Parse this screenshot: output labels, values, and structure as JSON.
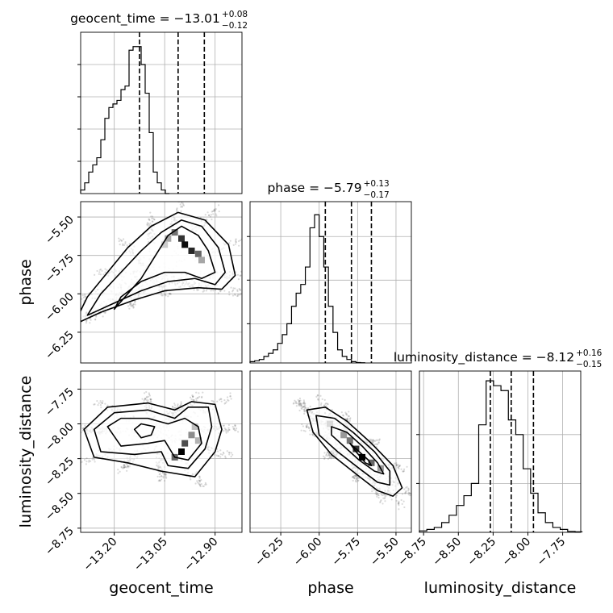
{
  "chart_data": {
    "type": "corner",
    "parameters": [
      {
        "key": "geocent_time",
        "label": "geocent_time",
        "title_name": "geocent_time",
        "title_value": "−13.01",
        "title_plus": "+0.08",
        "title_minus": "−0.12",
        "range": [
          -13.3,
          -12.82
        ],
        "ticks": [
          -13.2,
          -13.05,
          -12.9
        ],
        "tick_labels": [
          "−13.20",
          "−13.05",
          "−12.90"
        ],
        "quantiles": [
          -13.125,
          -13.01,
          -12.932
        ],
        "hist": {
          "edges_start": -13.3,
          "bin_width": 0.012,
          "counts": [
            1,
            3,
            6,
            8,
            10,
            15,
            21,
            24,
            25,
            26,
            29,
            30,
            40,
            41,
            41,
            36,
            28,
            17,
            6,
            3,
            1,
            0
          ]
        },
        "hist_ylim": [
          0,
          45
        ],
        "hist_grid": [
          9,
          18,
          27,
          36
        ]
      },
      {
        "key": "phase",
        "label": "phase",
        "title_name": "phase",
        "title_value": "−5.79",
        "title_plus": "+0.13",
        "title_minus": "−0.17",
        "range": [
          -6.45,
          -5.4
        ],
        "ticks": [
          -6.25,
          -6.0,
          -5.75,
          -5.5
        ],
        "tick_labels": [
          "−6.25",
          "−6.00",
          "−5.75",
          "−5.50"
        ],
        "quantiles": [
          -5.96,
          -5.79,
          -5.66
        ],
        "hist": {
          "edges_start": -6.45,
          "bin_width": 0.03,
          "counts": [
            0.3,
            0.5,
            0.8,
            1.5,
            2.2,
            3.0,
            4.5,
            6.5,
            9,
            13,
            16,
            18,
            22,
            31,
            34,
            29,
            22,
            13,
            7,
            3,
            1.5,
            0.8,
            0.3,
            0.1,
            0.05
          ]
        },
        "hist_ylim": [
          0,
          37
        ],
        "hist_grid": [
          9,
          19,
          29
        ]
      },
      {
        "key": "luminosity_distance",
        "label": "luminosity_distance",
        "title_name": "luminosity_distance",
        "title_value": "−8.12",
        "title_plus": "+0.16",
        "title_minus": "−0.15",
        "range": [
          -8.78,
          -7.62
        ],
        "ticks": [
          -8.75,
          -8.5,
          -8.25,
          -8.0,
          -7.75
        ],
        "tick_labels": [
          "−8.75",
          "−8.50",
          "−8.25",
          "−8.00",
          "−7.75"
        ],
        "quantiles": [
          -8.27,
          -8.12,
          -7.96
        ],
        "hist": {
          "edges_start": -8.78,
          "bin_width": 0.0533,
          "counts": [
            0.3,
            0.6,
            1.0,
            2.0,
            3.5,
            5.5,
            7.5,
            10,
            22,
            31,
            30,
            29,
            23,
            20,
            13,
            8,
            4,
            2.0,
            1.0,
            0.6,
            0.2,
            0.1
          ]
        },
        "hist_ylim": [
          0,
          33
        ],
        "hist_grid": [
          10,
          20
        ]
      }
    ],
    "joint": {
      "phase_vs_geocent_time": {
        "points": [
          [
            -13.26,
            -6.1
          ],
          [
            -13.2,
            -6.0
          ],
          [
            -13.14,
            -5.88
          ],
          [
            -13.08,
            -5.72
          ],
          [
            -13.03,
            -5.6
          ],
          [
            -13.0,
            -5.58
          ],
          [
            -12.96,
            -5.66
          ],
          [
            -12.94,
            -5.74
          ],
          [
            -12.92,
            -5.82
          ],
          [
            -12.9,
            -5.86
          ],
          [
            -12.96,
            -5.9
          ],
          [
            -13.02,
            -5.86
          ],
          [
            -13.1,
            -5.9
          ],
          [
            -13.18,
            -6.0
          ],
          [
            -13.24,
            -6.12
          ]
        ],
        "levels": [
          [
            [
              -13.2,
              -6.1
            ],
            [
              -13.16,
              -6.0
            ],
            [
              -13.12,
              -5.9
            ],
            [
              -13.08,
              -5.76
            ],
            [
              -13.04,
              -5.62
            ],
            [
              -13.0,
              -5.56
            ],
            [
              -12.95,
              -5.62
            ],
            [
              -12.92,
              -5.72
            ],
            [
              -12.9,
              -5.86
            ],
            [
              -12.94,
              -5.9
            ],
            [
              -12.99,
              -5.86
            ],
            [
              -13.05,
              -5.86
            ],
            [
              -13.12,
              -5.92
            ],
            [
              -13.18,
              -6.02
            ],
            [
              -13.2,
              -6.1
            ]
          ],
          [
            [
              -13.28,
              -6.14
            ],
            [
              -13.24,
              -6.0
            ],
            [
              -13.18,
              -5.86
            ],
            [
              -13.12,
              -5.72
            ],
            [
              -13.06,
              -5.6
            ],
            [
              -13.0,
              -5.52
            ],
            [
              -12.94,
              -5.56
            ],
            [
              -12.89,
              -5.7
            ],
            [
              -12.87,
              -5.86
            ],
            [
              -12.9,
              -5.94
            ],
            [
              -12.96,
              -5.9
            ],
            [
              -13.04,
              -5.92
            ],
            [
              -13.12,
              -5.98
            ],
            [
              -13.2,
              -6.06
            ],
            [
              -13.28,
              -6.14
            ]
          ],
          [
            [
              -13.32,
              -6.2
            ],
            [
              -13.28,
              -6.02
            ],
            [
              -13.22,
              -5.86
            ],
            [
              -13.16,
              -5.7
            ],
            [
              -13.09,
              -5.56
            ],
            [
              -13.01,
              -5.47
            ],
            [
              -12.93,
              -5.52
            ],
            [
              -12.86,
              -5.68
            ],
            [
              -12.84,
              -5.88
            ],
            [
              -12.88,
              -5.97
            ],
            [
              -12.95,
              -5.96
            ],
            [
              -13.05,
              -5.98
            ],
            [
              -13.14,
              -6.04
            ],
            [
              -13.24,
              -6.12
            ],
            [
              -13.32,
              -6.2
            ]
          ]
        ],
        "heat": [
          [
            -13.02,
            -5.6,
            0.55
          ],
          [
            -13.0,
            -5.64,
            0.8
          ],
          [
            -12.99,
            -5.68,
            0.95
          ],
          [
            -12.97,
            -5.72,
            0.85
          ],
          [
            -12.95,
            -5.74,
            0.6
          ],
          [
            -13.04,
            -5.64,
            0.35
          ],
          [
            -12.94,
            -5.78,
            0.35
          ],
          [
            -13.05,
            -5.68,
            0.2
          ]
        ]
      },
      "luminosity_distance_vs_geocent_time": {
        "points": [
          [
            -13.25,
            -8.05
          ],
          [
            -13.2,
            -7.95
          ],
          [
            -13.12,
            -7.92
          ],
          [
            -13.05,
            -7.96
          ],
          [
            -12.98,
            -7.9
          ],
          [
            -12.93,
            -7.88
          ],
          [
            -12.9,
            -8.0
          ],
          [
            -12.92,
            -8.14
          ],
          [
            -12.96,
            -8.28
          ],
          [
            -13.02,
            -8.36
          ],
          [
            -13.08,
            -8.24
          ],
          [
            -13.14,
            -8.3
          ],
          [
            -13.22,
            -8.22
          ]
        ],
        "levels": [
          [
            [
              -13.14,
              -8.04
            ],
            [
              -13.12,
              -8.0
            ],
            [
              -13.08,
              -8.02
            ],
            [
              -13.09,
              -8.08
            ],
            [
              -13.12,
              -8.1
            ],
            [
              -13.14,
              -8.04
            ]
          ],
          [
            [
              -13.22,
              -8.02
            ],
            [
              -13.18,
              -7.96
            ],
            [
              -13.1,
              -7.96
            ],
            [
              -13.04,
              -8.0
            ],
            [
              -12.99,
              -7.96
            ],
            [
              -12.95,
              -8.02
            ],
            [
              -12.94,
              -8.14
            ],
            [
              -12.98,
              -8.26
            ],
            [
              -13.02,
              -8.24
            ],
            [
              -13.05,
              -8.12
            ],
            [
              -13.1,
              -8.14
            ],
            [
              -13.18,
              -8.16
            ],
            [
              -13.22,
              -8.02
            ]
          ],
          [
            [
              -13.26,
              -8.04
            ],
            [
              -13.2,
              -7.92
            ],
            [
              -13.1,
              -7.9
            ],
            [
              -13.02,
              -7.96
            ],
            [
              -12.98,
              -7.88
            ],
            [
              -12.92,
              -7.88
            ],
            [
              -12.91,
              -8.02
            ],
            [
              -12.93,
              -8.18
            ],
            [
              -12.98,
              -8.32
            ],
            [
              -13.04,
              -8.3
            ],
            [
              -13.06,
              -8.2
            ],
            [
              -13.14,
              -8.22
            ],
            [
              -13.24,
              -8.2
            ],
            [
              -13.26,
              -8.04
            ]
          ],
          [
            [
              -13.29,
              -8.04
            ],
            [
              -13.22,
              -7.88
            ],
            [
              -13.1,
              -7.85
            ],
            [
              -13.02,
              -7.9
            ],
            [
              -12.97,
              -7.84
            ],
            [
              -12.9,
              -7.86
            ],
            [
              -12.88,
              -8.04
            ],
            [
              -12.9,
              -8.2
            ],
            [
              -12.96,
              -8.38
            ],
            [
              -13.06,
              -8.34
            ],
            [
              -13.16,
              -8.28
            ],
            [
              -13.26,
              -8.24
            ],
            [
              -13.29,
              -8.04
            ]
          ]
        ],
        "heat": [
          [
            -12.96,
            -8.02,
            0.25
          ],
          [
            -12.97,
            -8.08,
            0.45
          ],
          [
            -12.99,
            -8.14,
            0.7
          ],
          [
            -13.0,
            -8.2,
            1.0
          ],
          [
            -13.02,
            -8.24,
            0.6
          ],
          [
            -12.95,
            -8.12,
            0.3
          ]
        ]
      },
      "luminosity_distance_vs_phase": {
        "points": [
          [
            -6.3,
            -7.8
          ],
          [
            -6.15,
            -7.88
          ],
          [
            -6.0,
            -7.92
          ],
          [
            -5.85,
            -8.02
          ],
          [
            -5.72,
            -8.16
          ],
          [
            -5.6,
            -8.3
          ],
          [
            -5.52,
            -8.44
          ],
          [
            -5.46,
            -8.56
          ],
          [
            -5.6,
            -8.42
          ],
          [
            -5.78,
            -8.24
          ],
          [
            -5.92,
            -8.14
          ],
          [
            -6.05,
            -8.04
          ],
          [
            -6.2,
            -7.94
          ]
        ],
        "levels": [
          [
            [
              -5.8,
              -8.14
            ],
            [
              -5.74,
              -8.2
            ],
            [
              -5.68,
              -8.26
            ],
            [
              -5.66,
              -8.3
            ],
            [
              -5.7,
              -8.28
            ],
            [
              -5.76,
              -8.2
            ],
            [
              -5.8,
              -8.14
            ]
          ],
          [
            [
              -5.92,
              -8.02
            ],
            [
              -5.82,
              -8.06
            ],
            [
              -5.72,
              -8.16
            ],
            [
              -5.62,
              -8.28
            ],
            [
              -5.58,
              -8.36
            ],
            [
              -5.64,
              -8.34
            ],
            [
              -5.74,
              -8.26
            ],
            [
              -5.84,
              -8.16
            ],
            [
              -5.92,
              -8.08
            ],
            [
              -5.92,
              -8.02
            ]
          ],
          [
            [
              -6.02,
              -7.94
            ],
            [
              -5.9,
              -7.96
            ],
            [
              -5.78,
              -8.06
            ],
            [
              -5.64,
              -8.2
            ],
            [
              -5.54,
              -8.34
            ],
            [
              -5.54,
              -8.44
            ],
            [
              -5.62,
              -8.42
            ],
            [
              -5.74,
              -8.32
            ],
            [
              -5.88,
              -8.2
            ],
            [
              -6.0,
              -8.08
            ],
            [
              -6.02,
              -7.94
            ]
          ],
          [
            [
              -6.08,
              -7.9
            ],
            [
              -5.96,
              -7.88
            ],
            [
              -5.82,
              -7.98
            ],
            [
              -5.66,
              -8.14
            ],
            [
              -5.52,
              -8.3
            ],
            [
              -5.46,
              -8.46
            ],
            [
              -5.52,
              -8.52
            ],
            [
              -5.62,
              -8.48
            ],
            [
              -5.76,
              -8.36
            ],
            [
              -5.92,
              -8.22
            ],
            [
              -6.04,
              -8.06
            ],
            [
              -6.08,
              -7.9
            ]
          ]
        ],
        "heat": [
          [
            -5.93,
            -8.0,
            0.15
          ],
          [
            -5.84,
            -8.08,
            0.4
          ],
          [
            -5.8,
            -8.12,
            0.55
          ],
          [
            -5.76,
            -8.18,
            0.8
          ],
          [
            -5.72,
            -8.24,
            1.0
          ],
          [
            -5.66,
            -8.28,
            0.6
          ],
          [
            -5.6,
            -8.32,
            0.4
          ]
        ]
      }
    }
  }
}
